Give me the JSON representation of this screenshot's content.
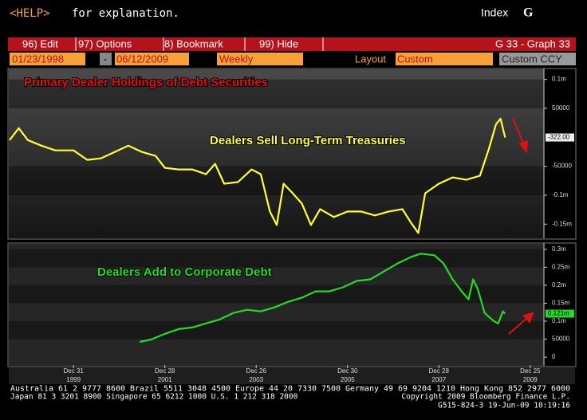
{
  "header": {
    "help_key": "<HELP>",
    "help_text": "for explanation.",
    "index_label": "Index",
    "index_key": "G"
  },
  "menu": {
    "items": [
      "96) Edit",
      "97) Options",
      "8) Bookmark",
      "99) Hide"
    ],
    "page_id": "G 33 - Graph 33"
  },
  "toolbar": {
    "start_date": "01/23/1998",
    "separator": "-",
    "end_date": "06/12/2009",
    "frequency": "Weekly",
    "layout_label": "Layout",
    "layout_value": "Custom",
    "currency": "Custom CCY"
  },
  "chart_data": [
    {
      "type": "line",
      "title": "Primary Dealer Holdings of Debt Securities",
      "annotation": "Dealers Sell Long-Term Treasuries",
      "x": [
        1998.6,
        1998.8,
        1999.0,
        1999.3,
        1999.6,
        2000.0,
        2000.3,
        2000.6,
        2000.9,
        2001.2,
        2001.5,
        2001.8,
        2002.0,
        2002.3,
        2002.6,
        2002.9,
        2003.1,
        2003.3,
        2003.6,
        2003.9,
        2004.1,
        2004.3,
        2004.45,
        2004.6,
        2004.8,
        2005.0,
        2005.2,
        2005.4,
        2005.7,
        2006.0,
        2006.3,
        2006.6,
        2006.9,
        2007.2,
        2007.4,
        2007.55,
        2007.7,
        2008.0,
        2008.3,
        2008.6,
        2008.9,
        2009.1,
        2009.25,
        2009.35,
        2009.45
      ],
      "series": [
        {
          "color": "#ffff33",
          "values": [
            -4800,
            15800,
            -4800,
            -14400,
            -22600,
            -22600,
            -39000,
            -36300,
            -25300,
            -14400,
            -25300,
            -32200,
            -52700,
            -55500,
            -55500,
            -63700,
            -45900,
            -80100,
            -77400,
            -55500,
            -63700,
            -128100,
            -151400,
            -80100,
            -96600,
            -114400,
            -151400,
            -124000,
            -137700,
            -128100,
            -128100,
            -134900,
            -128100,
            -124000,
            -148600,
            -165100,
            -96600,
            -80100,
            -69200,
            -73300,
            -66400,
            -18500,
            22600,
            32200,
            -322
          ]
        }
      ],
      "last_value": {
        "value": -322,
        "label": "-322.00"
      },
      "xlim": [
        1998.6,
        2010.3
      ],
      "ylim": [
        -173000,
        116000
      ],
      "yticks": [
        {
          "value": 100000,
          "label": "0.1m"
        },
        50000,
        -50000,
        {
          "value": -100000,
          "label": "-0.1m"
        },
        {
          "value": -150000,
          "label": "-0.15m"
        }
      ]
    },
    {
      "type": "line",
      "annotation": "Dealers Add to Corporate Debt",
      "x": [
        2001.45,
        2001.7,
        2002.0,
        2002.3,
        2002.6,
        2002.9,
        2003.2,
        2003.5,
        2003.8,
        2004.1,
        2004.4,
        2004.7,
        2005.0,
        2005.3,
        2005.6,
        2005.9,
        2006.2,
        2006.5,
        2006.8,
        2007.1,
        2007.4,
        2007.6,
        2007.9,
        2008.1,
        2008.3,
        2008.5,
        2008.65,
        2008.75,
        2008.85,
        2009.0,
        2009.2,
        2009.3,
        2009.4,
        2009.45
      ],
      "series": [
        {
          "color": "#22dd22",
          "values": [
            42400,
            49100,
            64700,
            78100,
            82600,
            93700,
            104900,
            122800,
            131700,
            127200,
            138400,
            154000,
            165200,
            183000,
            183000,
            194200,
            212000,
            216500,
            238800,
            261100,
            279000,
            287900,
            283500,
            261100,
            216500,
            183000,
            160700,
            216500,
            189800,
            122800,
            100400,
            93700,
            127200,
            121000
          ]
        }
      ],
      "last_value": {
        "value": 121000,
        "label": "0.121m"
      },
      "xlim": [
        1998.6,
        2010.3
      ],
      "ylim": [
        -22000,
        313000
      ],
      "yticks": [
        {
          "value": 300000,
          "label": "0.3m"
        },
        {
          "value": 250000,
          "label": "0.25m"
        },
        {
          "value": 200000,
          "label": "0.2m"
        },
        {
          "value": 150000,
          "label": "0.15m"
        },
        {
          "value": 100000,
          "label": "0.1m"
        },
        50000,
        0
      ],
      "xticks": [
        {
          "value": 2000.0,
          "label": "Dec 31"
        },
        {
          "value": 2002.0,
          "label": "Dec 28"
        },
        {
          "value": 2004.0,
          "label": "Dec 26"
        },
        {
          "value": 2006.0,
          "label": "Dec 30"
        },
        {
          "value": 2008.0,
          "label": "Dec 28"
        },
        {
          "value": 2010.0,
          "label": "Dec 25"
        }
      ],
      "xtick_years": [
        "1999",
        "2001",
        "2003",
        "2005",
        "2007",
        "2009"
      ]
    }
  ],
  "footer": {
    "contacts_1": "Australia 61 2 9777 8600 Brazil 5511 3048 4500 Europe 44 20 7330 7500 Germany 49 69 9204 1210 Hong Kong 852 2977 6000",
    "contacts_2": "Japan 81 3 3201 8900     Singapore 65 6212 1000     U.S. 1 212 318 2000",
    "copyright": "Copyright 2009 Bloomberg Finance L.P.",
    "stamp": "G515-824-3 19-Jun-09 10:19:16"
  }
}
